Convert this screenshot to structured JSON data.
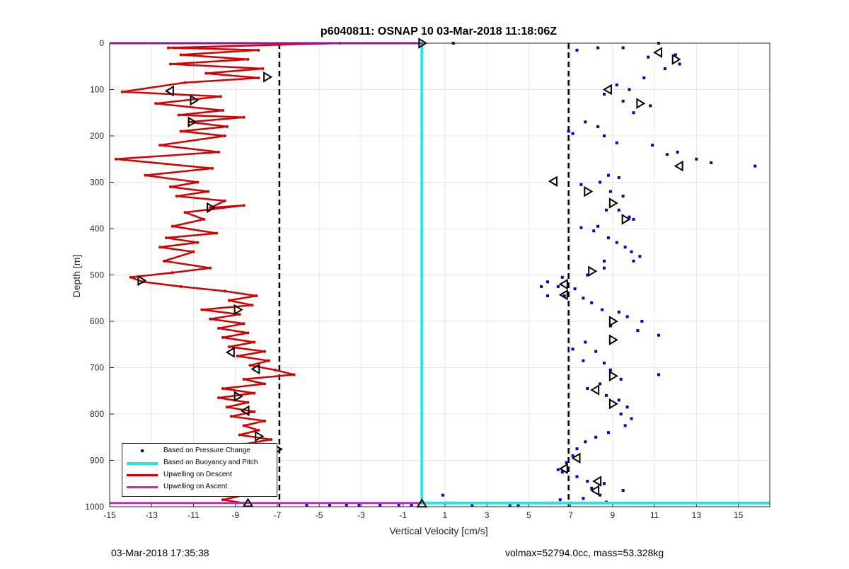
{
  "footer": {
    "timestamp": "03-Mar-2018 17:35:38",
    "info": "volmax=52794.0cc, mass=53.328kg"
  },
  "chart_data": {
    "type": "scatter",
    "title": "p6040811: OSNAP 10 03-Mar-2018 11:18:06Z",
    "xlabel": "Vertical Velocity [cm/s]",
    "ylabel": "Depth [m]",
    "xlim": [
      -15,
      16.5
    ],
    "ylim": [
      1000,
      0
    ],
    "y_reversed": true,
    "xticks": [
      -15,
      -13,
      -11,
      -9,
      -7,
      -5,
      -3,
      -1,
      1,
      3,
      5,
      7,
      9,
      11,
      13,
      15
    ],
    "yticks": [
      0,
      100,
      200,
      300,
      400,
      500,
      600,
      700,
      800,
      900,
      1000
    ],
    "grid": true,
    "legend_position": "bottom-left",
    "colors": {
      "pressure": "#0000cc",
      "buoyancy": "#22e6e6",
      "descent": "#d40000",
      "ascent": "#d61ad6",
      "reference": "#000000"
    },
    "reference_lines": [
      {
        "x": -6.9,
        "style": "dashed"
      },
      {
        "x": 6.9,
        "style": "dashed"
      }
    ],
    "series": [
      {
        "name": "Based on Pressure Change",
        "type": "scatter",
        "points": [
          [
            7.3,
            15
          ],
          [
            8.3,
            10
          ],
          [
            9.5,
            10
          ],
          [
            11.2,
            0
          ],
          [
            12,
            25
          ],
          [
            12.2,
            45
          ],
          [
            10.7,
            30
          ],
          [
            11.5,
            55
          ],
          [
            10.5,
            75
          ],
          [
            9.2,
            90
          ],
          [
            8.6,
            110
          ],
          [
            9.8,
            100
          ],
          [
            9.5,
            125
          ],
          [
            10.8,
            135
          ],
          [
            10,
            150
          ],
          [
            7.7,
            170
          ],
          [
            8.3,
            180
          ],
          [
            7.1,
            195
          ],
          [
            6.9,
            190
          ],
          [
            8.6,
            200
          ],
          [
            9.2,
            215
          ],
          [
            10.9,
            220
          ],
          [
            12.1,
            235
          ],
          [
            13,
            250
          ],
          [
            13.7,
            258
          ],
          [
            15.8,
            265
          ],
          [
            11.6,
            240
          ],
          [
            8.8,
            285
          ],
          [
            9.3,
            290
          ],
          [
            8.4,
            300
          ],
          [
            7.5,
            305
          ],
          [
            8.9,
            320
          ],
          [
            9.5,
            330
          ],
          [
            8.7,
            360
          ],
          [
            9.3,
            360
          ],
          [
            9.8,
            375
          ],
          [
            10,
            380
          ],
          [
            8.3,
            395
          ],
          [
            7.5,
            398
          ],
          [
            8.1,
            405
          ],
          [
            8.8,
            420
          ],
          [
            9.2,
            430
          ],
          [
            9.6,
            440
          ],
          [
            9.9,
            450
          ],
          [
            10.3,
            460
          ],
          [
            8.6,
            470
          ],
          [
            10,
            470
          ],
          [
            8.6,
            485
          ],
          [
            7.8,
            500
          ],
          [
            6.6,
            505
          ],
          [
            5.9,
            515
          ],
          [
            5.6,
            525
          ],
          [
            6.4,
            525
          ],
          [
            7.2,
            530
          ],
          [
            5.9,
            545
          ],
          [
            6.7,
            545
          ],
          [
            7.6,
            550
          ],
          [
            8,
            560
          ],
          [
            8.5,
            575
          ],
          [
            9.3,
            580
          ],
          [
            9.7,
            590
          ],
          [
            10.4,
            600
          ],
          [
            8.9,
            610
          ],
          [
            10.2,
            620
          ],
          [
            11.2,
            630
          ],
          [
            7.7,
            645
          ],
          [
            7.1,
            660
          ],
          [
            8.2,
            665
          ],
          [
            7.6,
            685
          ],
          [
            8.6,
            690
          ],
          [
            8.9,
            705
          ],
          [
            11.2,
            715
          ],
          [
            9.4,
            725
          ],
          [
            8.4,
            735
          ],
          [
            7.8,
            745
          ],
          [
            8.7,
            760
          ],
          [
            9.3,
            770
          ],
          [
            9.7,
            785
          ],
          [
            9.4,
            800
          ],
          [
            9.9,
            810
          ],
          [
            9.6,
            825
          ],
          [
            8.8,
            840
          ],
          [
            8.2,
            850
          ],
          [
            7.7,
            860
          ],
          [
            7.3,
            875
          ],
          [
            7.1,
            890
          ],
          [
            6.8,
            905
          ],
          [
            6.4,
            920
          ],
          [
            6.6,
            925
          ],
          [
            7.3,
            935
          ],
          [
            7.8,
            945
          ],
          [
            8.6,
            950
          ],
          [
            8,
            960
          ],
          [
            8.4,
            975
          ],
          [
            9.5,
            965
          ],
          [
            7.6,
            982
          ],
          [
            8.7,
            990
          ],
          [
            6.1,
            992
          ],
          [
            6.5,
            985
          ],
          [
            1.4,
            0
          ],
          [
            0.9,
            975
          ],
          [
            1.1,
            992
          ],
          [
            -0.6,
            996
          ],
          [
            -1.2,
            996
          ],
          [
            -2.1,
            996
          ],
          [
            -3.1,
            996
          ],
          [
            -3.7,
            996
          ],
          [
            -5.6,
            996
          ],
          [
            -4.5,
            996
          ],
          [
            4.5,
            996
          ],
          [
            4.1,
            996
          ],
          [
            2.3,
            996
          ]
        ]
      },
      {
        "name": "Based on Buoyancy and Pitch",
        "type": "line",
        "points": [
          [
            -0.1,
            0
          ],
          [
            -0.1,
            992
          ],
          [
            16.5,
            992
          ]
        ]
      },
      {
        "name": "Upwelling on Descent",
        "type": "line",
        "points": [
          [
            -4.0,
            0
          ],
          [
            -12.2,
            10
          ],
          [
            -7.9,
            15
          ],
          [
            -11.6,
            25
          ],
          [
            -8.4,
            35
          ],
          [
            -12.1,
            45
          ],
          [
            -7.7,
            55
          ],
          [
            -10.4,
            65
          ],
          [
            -7.9,
            75
          ],
          [
            -11.4,
            85
          ],
          [
            -14.4,
            105
          ],
          [
            -9.7,
            115
          ],
          [
            -12.8,
            130
          ],
          [
            -9.6,
            145
          ],
          [
            -11.7,
            155
          ],
          [
            -8.6,
            160
          ],
          [
            -11.2,
            170
          ],
          [
            -9.4,
            180
          ],
          [
            -11.6,
            190
          ],
          [
            -9.5,
            200
          ],
          [
            -12.6,
            220
          ],
          [
            -9.8,
            235
          ],
          [
            -14.7,
            250
          ],
          [
            -10.1,
            270
          ],
          [
            -13.3,
            285
          ],
          [
            -10.8,
            300
          ],
          [
            -12.1,
            310
          ],
          [
            -10.3,
            320
          ],
          [
            -11.8,
            330
          ],
          [
            -9.5,
            340
          ],
          [
            -10.2,
            355
          ],
          [
            -8.6,
            350
          ],
          [
            -11.4,
            365
          ],
          [
            -10.5,
            380
          ],
          [
            -12,
            395
          ],
          [
            -9.9,
            410
          ],
          [
            -12.3,
            420
          ],
          [
            -10.8,
            430
          ],
          [
            -12.6,
            440
          ],
          [
            -11,
            450
          ],
          [
            -12.4,
            470
          ],
          [
            -10.2,
            485
          ],
          [
            -12,
            495
          ],
          [
            -14,
            505
          ],
          [
            -13.4,
            515
          ],
          [
            -11.6,
            525
          ],
          [
            -9.5,
            535
          ],
          [
            -8,
            545
          ],
          [
            -9.3,
            555
          ],
          [
            -8.2,
            565
          ],
          [
            -10.6,
            575
          ],
          [
            -8.8,
            585
          ],
          [
            -10.2,
            595
          ],
          [
            -8.6,
            605
          ],
          [
            -9.8,
            615
          ],
          [
            -8.4,
            625
          ],
          [
            -9.6,
            635
          ],
          [
            -8.1,
            645
          ],
          [
            -9.3,
            655
          ],
          [
            -7.6,
            665
          ],
          [
            -8.9,
            675
          ],
          [
            -7.4,
            685
          ],
          [
            -8.3,
            695
          ],
          [
            -7.1,
            705
          ],
          [
            -6.2,
            715
          ],
          [
            -8.6,
            725
          ],
          [
            -7.6,
            735
          ],
          [
            -9.6,
            745
          ],
          [
            -8.1,
            755
          ],
          [
            -9.8,
            765
          ],
          [
            -8.4,
            775
          ],
          [
            -9.4,
            785
          ],
          [
            -8.1,
            795
          ],
          [
            -9.2,
            805
          ],
          [
            -7.6,
            815
          ],
          [
            -8.6,
            825
          ],
          [
            -7.9,
            835
          ],
          [
            -8.8,
            845
          ],
          [
            -7.3,
            855
          ],
          [
            -8.6,
            865
          ],
          [
            -7.6,
            875
          ],
          [
            -8.2,
            885
          ],
          [
            -7.9,
            895
          ],
          [
            -9.8,
            905
          ],
          [
            -8.4,
            915
          ],
          [
            -9.8,
            925
          ],
          [
            -8.7,
            935
          ],
          [
            -9.9,
            945
          ],
          [
            -8.6,
            955
          ],
          [
            -9.4,
            965
          ],
          [
            -8.6,
            975
          ],
          [
            -9.6,
            985
          ],
          [
            -8.6,
            992
          ]
        ]
      },
      {
        "name": "Upwelling on Ascent",
        "type": "line",
        "points": [
          [
            -15,
            0
          ],
          [
            -0.1,
            0
          ],
          [
            -0.1,
            992
          ],
          [
            -15,
            992
          ]
        ]
      }
    ],
    "glide_markers": [
      {
        "x": 11.2,
        "y": 20,
        "dir": "left"
      },
      {
        "x": 12,
        "y": 35,
        "dir": "right"
      },
      {
        "x": 8.8,
        "y": 100,
        "dir": "left"
      },
      {
        "x": 10.3,
        "y": 130,
        "dir": "right"
      },
      {
        "x": 12.2,
        "y": 265,
        "dir": "left"
      },
      {
        "x": 6.2,
        "y": 298,
        "dir": "left"
      },
      {
        "x": 7.8,
        "y": 320,
        "dir": "right"
      },
      {
        "x": 9,
        "y": 345,
        "dir": "right"
      },
      {
        "x": 9.6,
        "y": 380,
        "dir": "right"
      },
      {
        "x": 8,
        "y": 492,
        "dir": "right"
      },
      {
        "x": 6.7,
        "y": 520,
        "dir": "left"
      },
      {
        "x": 6.7,
        "y": 543,
        "dir": "left"
      },
      {
        "x": 9,
        "y": 600,
        "dir": "right"
      },
      {
        "x": 9,
        "y": 640,
        "dir": "right"
      },
      {
        "x": 9,
        "y": 718,
        "dir": "right"
      },
      {
        "x": 8.2,
        "y": 748,
        "dir": "left"
      },
      {
        "x": 9,
        "y": 778,
        "dir": "right"
      },
      {
        "x": 7.3,
        "y": 895,
        "dir": "left"
      },
      {
        "x": 6.7,
        "y": 918,
        "dir": "left"
      },
      {
        "x": 8.3,
        "y": 945,
        "dir": "left"
      },
      {
        "x": 8.2,
        "y": 965,
        "dir": "left"
      },
      {
        "x": -7.5,
        "y": 73,
        "dir": "right"
      },
      {
        "x": -12.1,
        "y": 103,
        "dir": "left"
      },
      {
        "x": -11,
        "y": 123,
        "dir": "right"
      },
      {
        "x": -11.1,
        "y": 170,
        "dir": "right"
      },
      {
        "x": -10.2,
        "y": 355,
        "dir": "right"
      },
      {
        "x": -13.5,
        "y": 512,
        "dir": "right"
      },
      {
        "x": -8.9,
        "y": 575,
        "dir": "right"
      },
      {
        "x": -9.2,
        "y": 667,
        "dir": "left"
      },
      {
        "x": -8,
        "y": 703,
        "dir": "left"
      },
      {
        "x": -8.9,
        "y": 762,
        "dir": "right"
      },
      {
        "x": -8.5,
        "y": 793,
        "dir": "left"
      },
      {
        "x": -7.9,
        "y": 848,
        "dir": "right"
      },
      {
        "x": -7,
        "y": 876,
        "dir": "right"
      },
      {
        "x": -8.5,
        "y": 930,
        "dir": "right"
      },
      {
        "x": -8.4,
        "y": 993,
        "dir": "up"
      },
      {
        "x": -0.1,
        "y": 0,
        "dir": "right"
      },
      {
        "x": -0.1,
        "y": 994,
        "dir": "up"
      }
    ]
  }
}
